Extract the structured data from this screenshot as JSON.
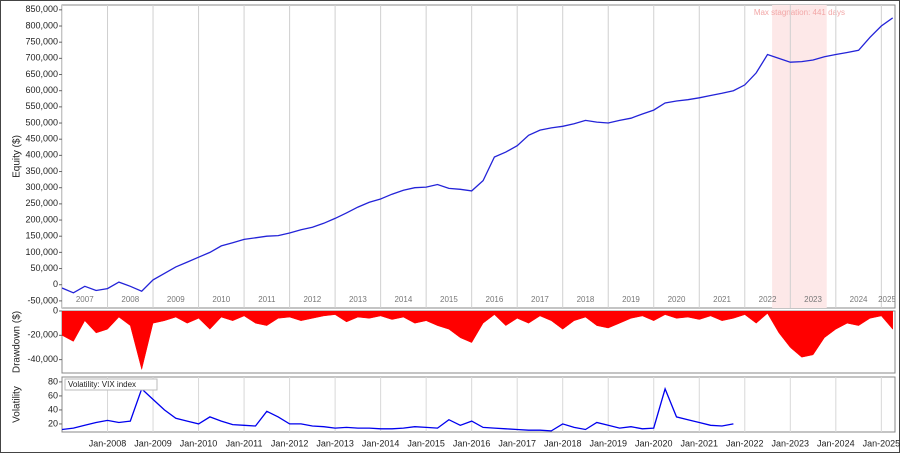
{
  "chart_data": [
    {
      "type": "line",
      "y_label": "Equity ($)",
      "xlim": [
        2007.0,
        2025.3
      ],
      "ylim": [
        -72000,
        865000
      ],
      "yticks": [
        {
          "value": -50000,
          "label": "-50,000"
        },
        0,
        {
          "value": 50000,
          "label": "50,000"
        },
        {
          "value": 100000,
          "label": "100,000"
        },
        {
          "value": 150000,
          "label": "150,000"
        },
        {
          "value": 200000,
          "label": "200,000"
        },
        {
          "value": 250000,
          "label": "250,000"
        },
        {
          "value": 300000,
          "label": "300,000"
        },
        {
          "value": 350000,
          "label": "350,000"
        },
        {
          "value": 400000,
          "label": "400,000"
        },
        {
          "value": 450000,
          "label": "450,000"
        },
        {
          "value": 500000,
          "label": "500,000"
        },
        {
          "value": 550000,
          "label": "550,000"
        },
        {
          "value": 600000,
          "label": "600,000"
        },
        {
          "value": 650000,
          "label": "650,000"
        },
        {
          "value": 700000,
          "label": "700,000"
        },
        {
          "value": 750000,
          "label": "750,000"
        },
        {
          "value": 800000,
          "label": "800,000"
        },
        {
          "value": 850000,
          "label": "850,000"
        }
      ],
      "year_labels": [
        2007,
        2008,
        2009,
        2010,
        2011,
        2012,
        2013,
        2014,
        2015,
        2016,
        2017,
        2018,
        2019,
        2020,
        2021,
        2022,
        2023,
        2024,
        2025
      ],
      "stagnation": {
        "start": 2022.6,
        "end": 2023.8,
        "label": "Max stagnation: 441 days",
        "color": "#fde8e8"
      },
      "x": [
        2007,
        2007.25,
        2007.5,
        2007.75,
        2008,
        2008.25,
        2008.5,
        2008.75,
        2009,
        2009.25,
        2009.5,
        2009.75,
        2010,
        2010.25,
        2010.5,
        2010.75,
        2011,
        2011.25,
        2011.5,
        2011.75,
        2012,
        2012.25,
        2012.5,
        2012.75,
        2013,
        2013.25,
        2013.5,
        2013.75,
        2014,
        2014.25,
        2014.5,
        2014.75,
        2015,
        2015.25,
        2015.5,
        2015.75,
        2016,
        2016.25,
        2016.5,
        2016.75,
        2017,
        2017.25,
        2017.5,
        2017.75,
        2018,
        2018.25,
        2018.5,
        2018.75,
        2019,
        2019.25,
        2019.5,
        2019.75,
        2020,
        2020.25,
        2020.5,
        2020.75,
        2021,
        2021.25,
        2021.5,
        2021.75,
        2022,
        2022.25,
        2022.5,
        2022.75,
        2023,
        2023.25,
        2023.5,
        2023.75,
        2024,
        2024.25,
        2024.5,
        2024.75,
        2025,
        2025.25
      ],
      "series": [
        {
          "color": "#2323d8",
          "values": [
            -10000,
            -25000,
            -5000,
            -18000,
            -12000,
            8000,
            -5000,
            -20000,
            15000,
            35000,
            55000,
            70000,
            85000,
            100000,
            120000,
            130000,
            140000,
            145000,
            150000,
            152000,
            160000,
            170000,
            178000,
            190000,
            205000,
            222000,
            240000,
            255000,
            265000,
            280000,
            292000,
            300000,
            302000,
            310000,
            298000,
            295000,
            290000,
            322000,
            395000,
            410000,
            430000,
            462000,
            478000,
            485000,
            490000,
            498000,
            508000,
            503000,
            500000,
            508000,
            515000,
            528000,
            540000,
            562000,
            568000,
            572000,
            578000,
            585000,
            592000,
            600000,
            618000,
            655000,
            712000,
            700000,
            688000,
            690000,
            695000,
            705000,
            712000,
            718000,
            725000,
            765000,
            800000,
            825000
          ]
        }
      ]
    },
    {
      "type": "area",
      "y_label": "Drawdown ($)",
      "xlim": [
        2007.0,
        2025.3
      ],
      "ylim": [
        -51000,
        0
      ],
      "yticks": [
        0,
        {
          "value": -20000,
          "label": "-20,000"
        },
        {
          "value": -40000,
          "label": "-40,000"
        }
      ],
      "x": [
        2007,
        2007.25,
        2007.5,
        2007.75,
        2008,
        2008.25,
        2008.5,
        2008.75,
        2009,
        2009.25,
        2009.5,
        2009.75,
        2010,
        2010.25,
        2010.5,
        2010.75,
        2011,
        2011.25,
        2011.5,
        2011.75,
        2012,
        2012.25,
        2012.5,
        2012.75,
        2013,
        2013.25,
        2013.5,
        2013.75,
        2014,
        2014.25,
        2014.5,
        2014.75,
        2015,
        2015.25,
        2015.5,
        2015.75,
        2016,
        2016.25,
        2016.5,
        2016.75,
        2017,
        2017.25,
        2017.5,
        2017.75,
        2018,
        2018.25,
        2018.5,
        2018.75,
        2019,
        2019.25,
        2019.5,
        2019.75,
        2020,
        2020.25,
        2020.5,
        2020.75,
        2021,
        2021.25,
        2021.5,
        2021.75,
        2022,
        2022.25,
        2022.5,
        2022.75,
        2023,
        2023.25,
        2023.5,
        2023.75,
        2024,
        2024.25,
        2024.5,
        2024.75,
        2025,
        2025.25
      ],
      "series": [
        {
          "color": "#ff0000",
          "values": [
            -20000,
            -25000,
            -8000,
            -18000,
            -15000,
            -5000,
            -12000,
            -48000,
            -10000,
            -8000,
            -5000,
            -10000,
            -6000,
            -15000,
            -5000,
            -8000,
            -4000,
            -10000,
            -12000,
            -6000,
            -5000,
            -8000,
            -6000,
            -4000,
            -3000,
            -9000,
            -5000,
            -6000,
            -4000,
            -7000,
            -5000,
            -10000,
            -8000,
            -12000,
            -15000,
            -22000,
            -26000,
            -10000,
            -3000,
            -12000,
            -6000,
            -10000,
            -4000,
            -8000,
            -15000,
            -8000,
            -5000,
            -12000,
            -14000,
            -10000,
            -6000,
            -4000,
            -8000,
            -3000,
            -6000,
            -5000,
            -7000,
            -4000,
            -8000,
            -6000,
            -3000,
            -10000,
            -2000,
            -18000,
            -30000,
            -38000,
            -36000,
            -22000,
            -15000,
            -10000,
            -12000,
            -6000,
            -4000,
            -15000
          ]
        }
      ]
    },
    {
      "type": "line",
      "y_label": "Volatility",
      "xlim": [
        2007.0,
        2025.3
      ],
      "ylim": [
        8.5,
        87
      ],
      "yticks": [
        20,
        40,
        60,
        80
      ],
      "xticks": [
        {
          "value": 2008,
          "label": "Jan-2008"
        },
        {
          "value": 2009,
          "label": "Jan-2009"
        },
        {
          "value": 2010,
          "label": "Jan-2010"
        },
        {
          "value": 2011,
          "label": "Jan-2011"
        },
        {
          "value": 2012,
          "label": "Jan-2012"
        },
        {
          "value": 2013,
          "label": "Jan-2013"
        },
        {
          "value": 2014,
          "label": "Jan-2014"
        },
        {
          "value": 2015,
          "label": "Jan-2015"
        },
        {
          "value": 2016,
          "label": "Jan-2016"
        },
        {
          "value": 2017,
          "label": "Jan-2017"
        },
        {
          "value": 2018,
          "label": "Jan-2018"
        },
        {
          "value": 2019,
          "label": "Jan-2019"
        },
        {
          "value": 2020,
          "label": "Jan-2020"
        },
        {
          "value": 2021,
          "label": "Jan-2021"
        },
        {
          "value": 2022,
          "label": "Jan-2022"
        },
        {
          "value": 2023,
          "label": "Jan-2023"
        },
        {
          "value": 2024,
          "label": "Jan-2024"
        },
        {
          "value": 2025,
          "label": "Jan-2025"
        }
      ],
      "x": [
        2007,
        2007.25,
        2007.5,
        2007.75,
        2008,
        2008.25,
        2008.5,
        2008.75,
        2009,
        2009.25,
        2009.5,
        2009.75,
        2010,
        2010.25,
        2010.5,
        2010.75,
        2011,
        2011.25,
        2011.5,
        2011.75,
        2012,
        2012.25,
        2012.5,
        2012.75,
        2013,
        2013.25,
        2013.5,
        2013.75,
        2014,
        2014.25,
        2014.5,
        2014.75,
        2015,
        2015.25,
        2015.5,
        2015.75,
        2016,
        2016.25,
        2016.5,
        2016.75,
        2017,
        2017.25,
        2017.5,
        2017.75,
        2018,
        2018.25,
        2018.5,
        2018.75,
        2019,
        2019.25,
        2019.5,
        2019.75,
        2020,
        2020.25,
        2020.5,
        2020.75,
        2021,
        2021.25,
        2021.5,
        2021.75
      ],
      "series": [
        {
          "name": "Volatility: VIX index",
          "color": "#0000ee",
          "values": [
            12,
            14,
            18,
            22,
            25,
            22,
            24,
            70,
            55,
            40,
            28,
            24,
            20,
            30,
            24,
            19,
            18,
            17,
            38,
            30,
            20,
            20,
            17,
            16,
            14,
            15,
            14,
            14,
            13,
            13,
            14,
            16,
            15,
            14,
            26,
            18,
            24,
            15,
            14,
            13,
            12,
            11,
            11,
            10,
            20,
            15,
            12,
            22,
            18,
            14,
            16,
            13,
            14,
            70,
            30,
            26,
            22,
            18,
            17,
            20
          ]
        }
      ]
    }
  ]
}
